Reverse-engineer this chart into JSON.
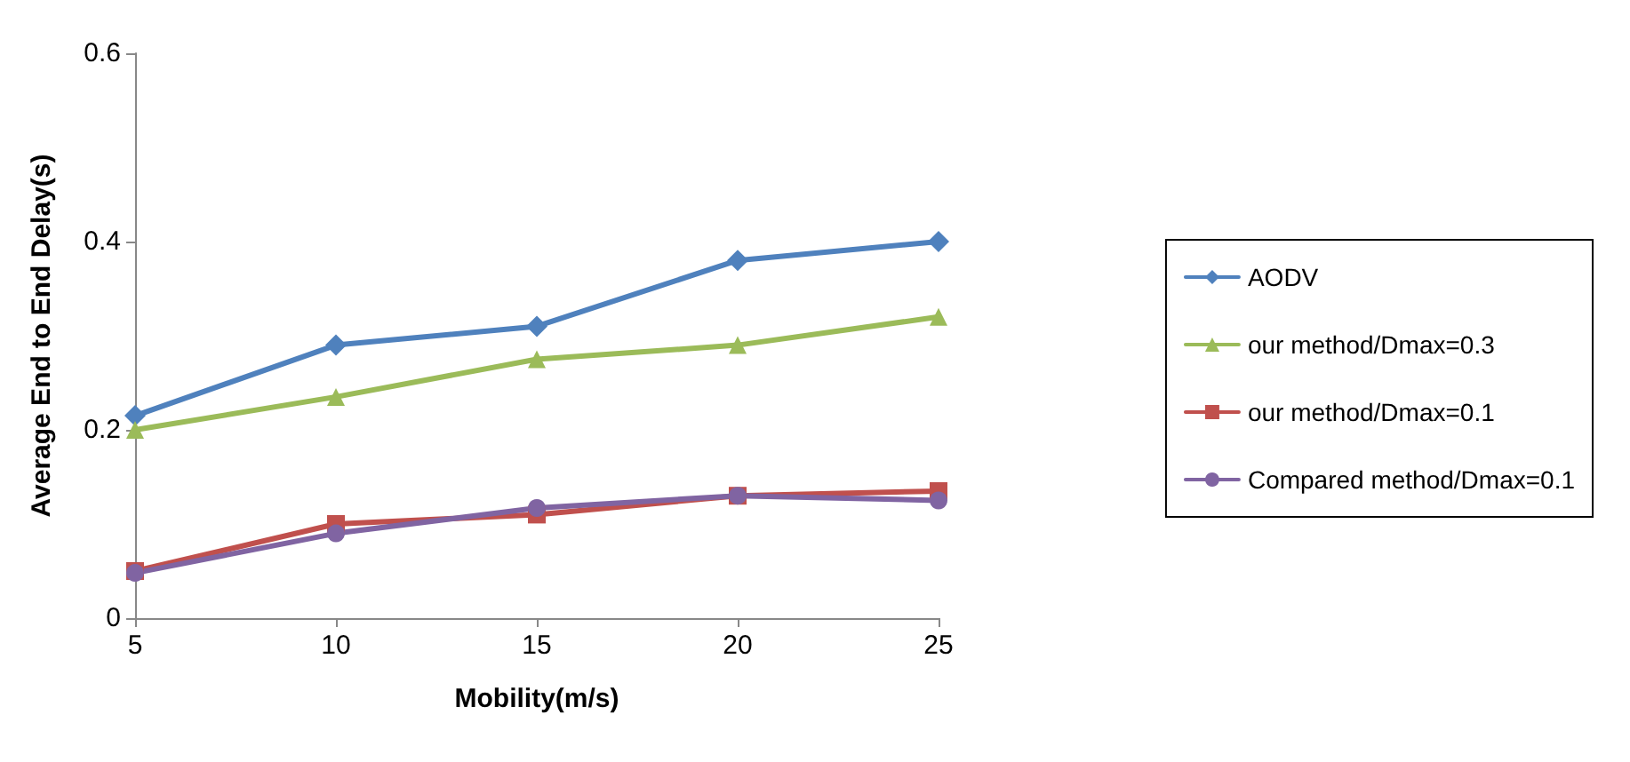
{
  "chart_data": {
    "type": "line",
    "xlabel": "Mobility(m/s)",
    "ylabel": "Average End to End Delay(s)",
    "x": [
      5,
      10,
      15,
      20,
      25
    ],
    "xlim": [
      5,
      25
    ],
    "xticks": [
      5,
      10,
      15,
      20,
      25
    ],
    "ylim": [
      0,
      0.6
    ],
    "yticks": [
      0,
      0.2,
      0.4,
      0.6
    ],
    "grid": false,
    "legend": "right",
    "series": [
      {
        "name": "AODV",
        "color": "#4f81bd",
        "marker": "diamond",
        "values": [
          0.215,
          0.29,
          0.31,
          0.38,
          0.4
        ]
      },
      {
        "name": "our method/Dmax=0.3",
        "color": "#9bbb59",
        "marker": "triangle",
        "values": [
          0.2,
          0.235,
          0.275,
          0.29,
          0.32
        ]
      },
      {
        "name": "our method/Dmax=0.1",
        "color": "#c0504d",
        "marker": "square",
        "values": [
          0.05,
          0.1,
          0.11,
          0.13,
          0.135
        ]
      },
      {
        "name": "Compared method/Dmax=0.1",
        "color": "#8064a2",
        "marker": "circle",
        "values": [
          0.048,
          0.09,
          0.117,
          0.13,
          0.125
        ]
      }
    ]
  }
}
